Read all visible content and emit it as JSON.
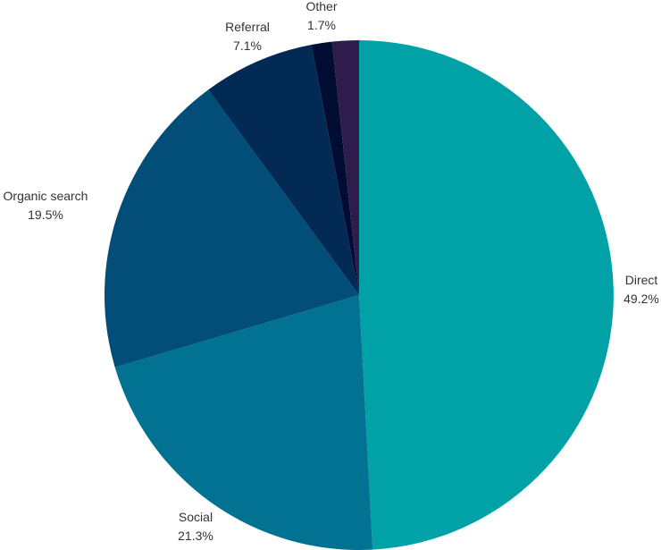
{
  "chart_data": {
    "type": "pie",
    "title": "",
    "categories": [
      "Direct",
      "Social",
      "Organic search",
      "Referral",
      "",
      "Other"
    ],
    "values": [
      49.2,
      21.3,
      19.5,
      7.1,
      1.3,
      1.7
    ],
    "value_labels": [
      "49.2%",
      "21.3%",
      "19.5%",
      "7.1%",
      "",
      "1.7%"
    ],
    "colors": [
      "#00a2a8",
      "#017291",
      "#034e78",
      "#032a55",
      "#010c33",
      "#2e1c4d"
    ],
    "legend": "none",
    "start": "12 o'clock",
    "direction": "clockwise"
  }
}
